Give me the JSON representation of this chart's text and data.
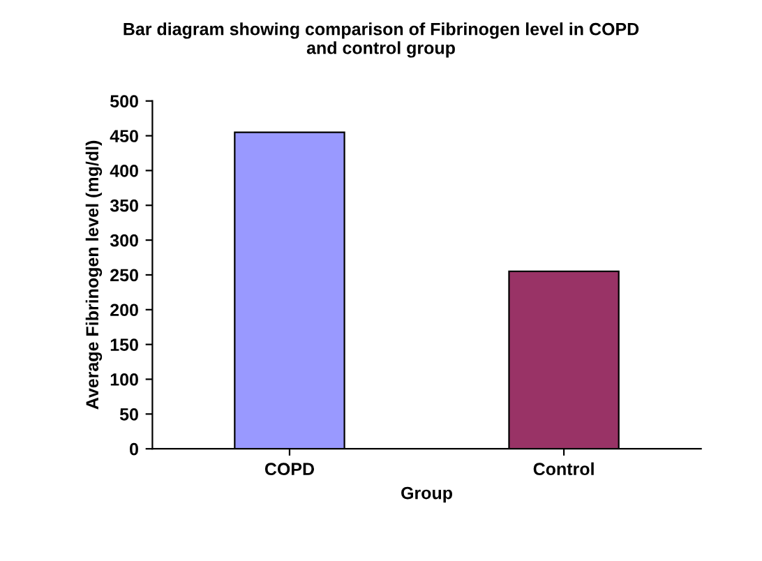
{
  "chart_data": {
    "type": "bar",
    "title": "Bar diagram showing comparison of Fibrinogen level in COPD\nand control group",
    "xlabel": "Group",
    "ylabel": "Average Fibrinogen level (mg/dl)",
    "categories": [
      "COPD",
      "Control"
    ],
    "values": [
      455,
      255
    ],
    "colors": [
      "#9999ff",
      "#993366"
    ],
    "ylim": [
      0,
      500
    ],
    "yticks": [
      0,
      50,
      100,
      150,
      200,
      250,
      300,
      350,
      400,
      450,
      500
    ],
    "grid": false,
    "legend": false
  }
}
